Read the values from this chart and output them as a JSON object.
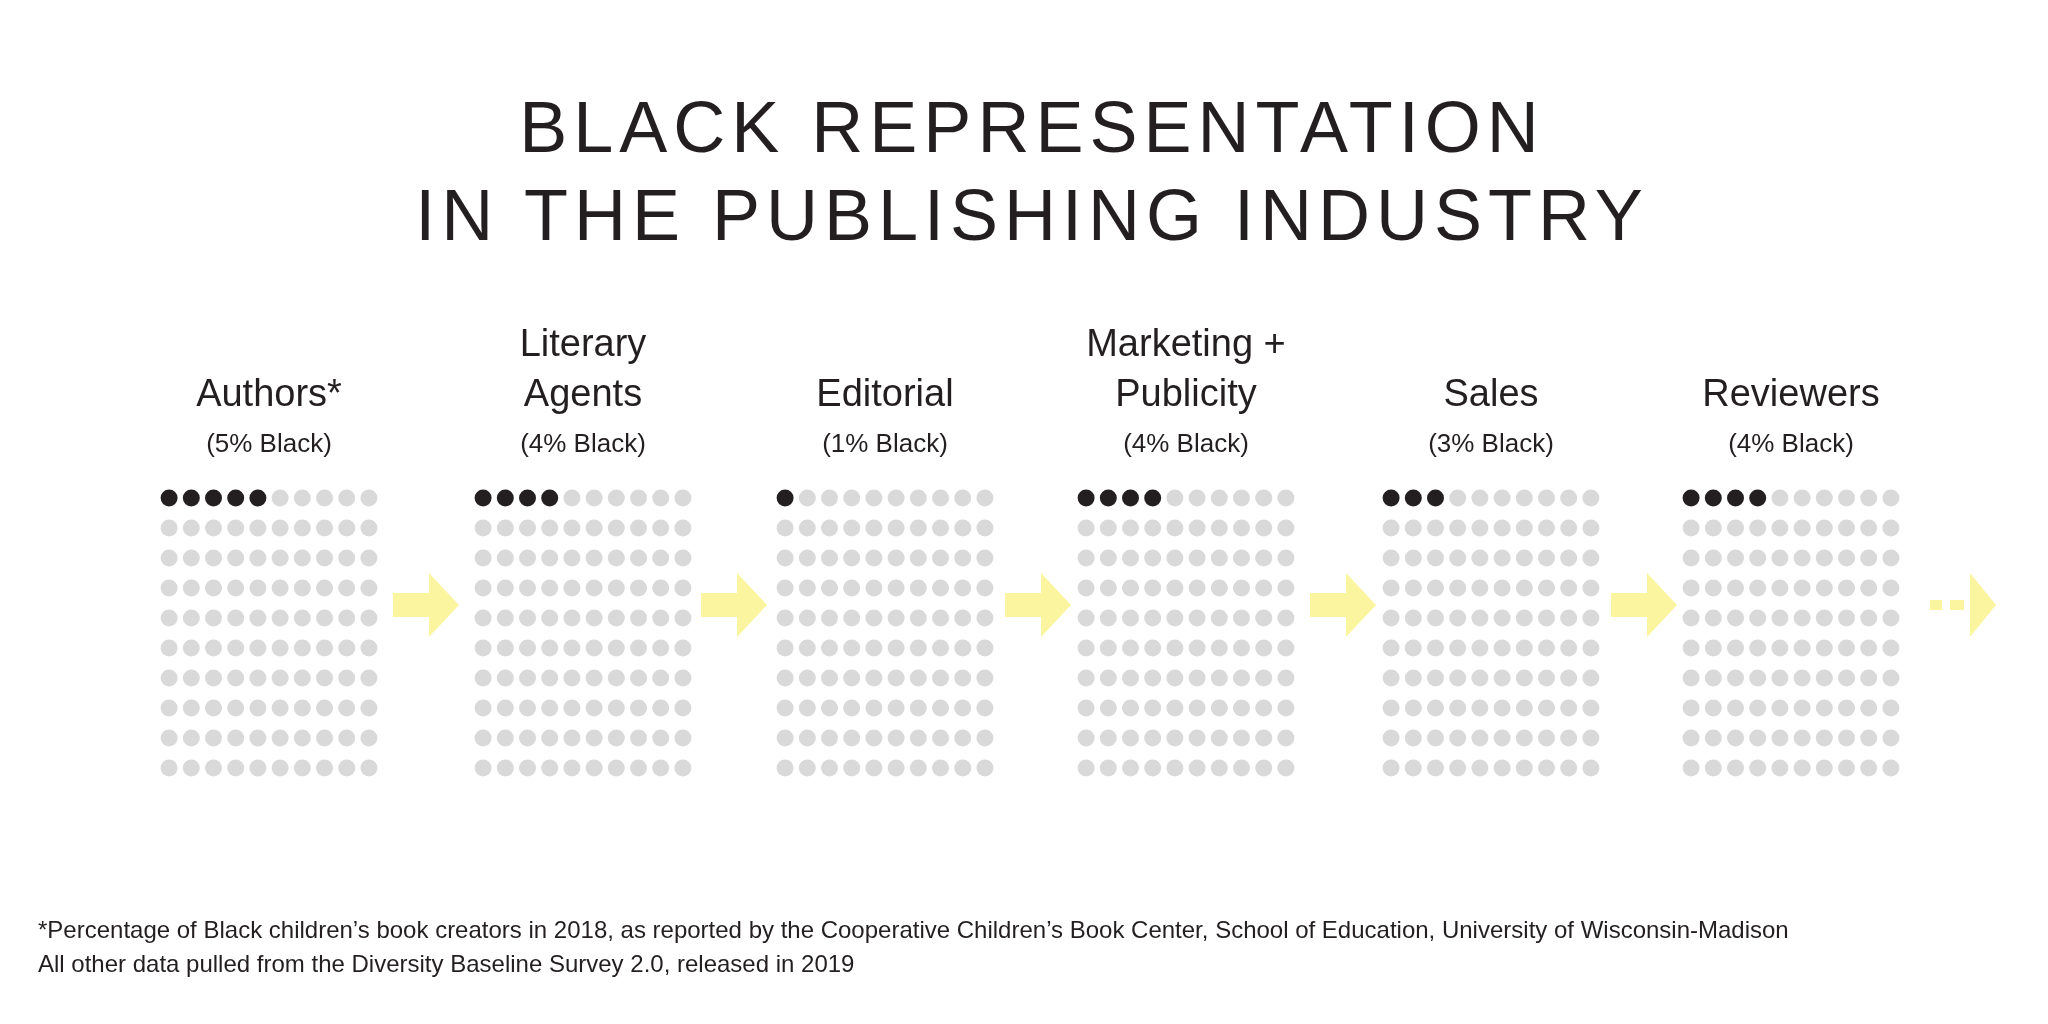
{
  "chart_data": {
    "type": "other",
    "title": "BLACK REPRESENTATION\nIN THE PUBLISHING INDUSTRY",
    "categories": [
      "Authors*",
      "Literary Agents",
      "Editorial",
      "Marketing + Publicity",
      "Sales",
      "Reviewers"
    ],
    "values": [
      5,
      4,
      1,
      4,
      3,
      4
    ],
    "value_labels": [
      "(5% Black)",
      "(4% Black)",
      "(1% Black)",
      "(4% Black)",
      "(3% Black)",
      "(4% Black)"
    ],
    "color": "#231f20",
    "annotations": [
      "*Percentage of Black children’s book creators in 2018, as reported by the Cooperative Children’s Book Center, School of Education, University of Wisconsin-Madison",
      "All other data pulled from the Diversity Baseline Survey 2.0, released in 2019"
    ]
  }
}
